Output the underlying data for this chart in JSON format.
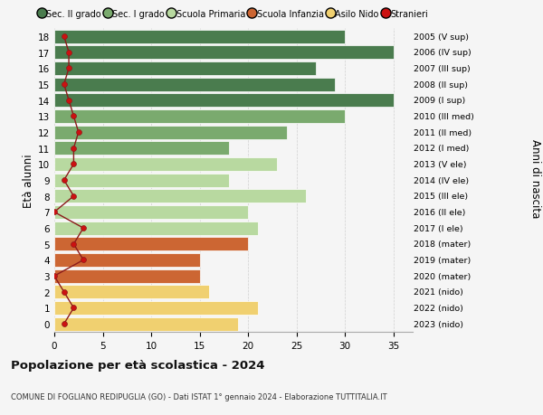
{
  "ages": [
    18,
    17,
    16,
    15,
    14,
    13,
    12,
    11,
    10,
    9,
    8,
    7,
    6,
    5,
    4,
    3,
    2,
    1,
    0
  ],
  "bar_values": [
    30,
    35,
    27,
    29,
    35,
    30,
    24,
    18,
    23,
    18,
    26,
    20,
    21,
    20,
    15,
    15,
    16,
    21,
    19
  ],
  "bar_colors": [
    "#4a7c4e",
    "#4a7c4e",
    "#4a7c4e",
    "#4a7c4e",
    "#4a7c4e",
    "#7aaa6e",
    "#7aaa6e",
    "#7aaa6e",
    "#b8d9a0",
    "#b8d9a0",
    "#b8d9a0",
    "#b8d9a0",
    "#b8d9a0",
    "#cc6633",
    "#cc6633",
    "#cc6633",
    "#f0d070",
    "#f0d070",
    "#f0d070"
  ],
  "foreigners_x": [
    1.0,
    1.5,
    1.5,
    1.0,
    1.5,
    2.0,
    2.5,
    2.0,
    2.0,
    1.0,
    2.0,
    0.0,
    3.0,
    2.0,
    3.0,
    0.0,
    1.0,
    2.0,
    1.0
  ],
  "right_labels": [
    "2005 (V sup)",
    "2006 (IV sup)",
    "2007 (III sup)",
    "2008 (II sup)",
    "2009 (I sup)",
    "2010 (III med)",
    "2011 (II med)",
    "2012 (I med)",
    "2013 (V ele)",
    "2014 (IV ele)",
    "2015 (III ele)",
    "2016 (II ele)",
    "2017 (I ele)",
    "2018 (mater)",
    "2019 (mater)",
    "2020 (mater)",
    "2021 (nido)",
    "2022 (nido)",
    "2023 (nido)"
  ],
  "legend_labels": [
    "Sec. II grado",
    "Sec. I grado",
    "Scuola Primaria",
    "Scuola Infanzia",
    "Asilo Nido",
    "Stranieri"
  ],
  "legend_colors": [
    "#4a7c4e",
    "#7aaa6e",
    "#b8d9a0",
    "#cc6633",
    "#f0d070",
    "#cc1111"
  ],
  "title": "Popolazione per età scolastica - 2024",
  "subtitle": "COMUNE DI FOGLIANO REDIPUGLIA (GO) - Dati ISTAT 1° gennaio 2024 - Elaborazione TUTTITALIA.IT",
  "ylabel": "Età alunni",
  "right_ylabel": "Anni di nascita",
  "xlim": [
    0,
    37
  ],
  "xticks": [
    0,
    5,
    10,
    15,
    20,
    25,
    30,
    35
  ],
  "background_color": "#f5f5f5",
  "grid_color": "#cccccc"
}
